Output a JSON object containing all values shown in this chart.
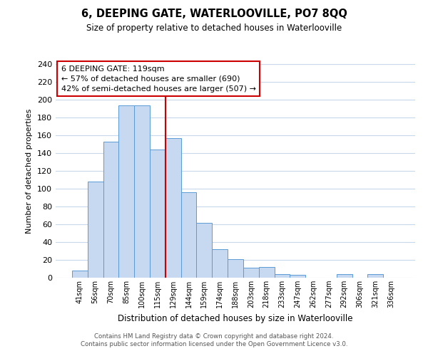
{
  "title": "6, DEEPING GATE, WATERLOOVILLE, PO7 8QQ",
  "subtitle": "Size of property relative to detached houses in Waterlooville",
  "xlabel": "Distribution of detached houses by size in Waterlooville",
  "ylabel": "Number of detached properties",
  "bar_labels": [
    "41sqm",
    "56sqm",
    "70sqm",
    "85sqm",
    "100sqm",
    "115sqm",
    "129sqm",
    "144sqm",
    "159sqm",
    "174sqm",
    "188sqm",
    "203sqm",
    "218sqm",
    "233sqm",
    "247sqm",
    "262sqm",
    "277sqm",
    "292sqm",
    "306sqm",
    "321sqm",
    "336sqm"
  ],
  "bar_values": [
    8,
    108,
    153,
    194,
    194,
    144,
    157,
    96,
    62,
    32,
    21,
    11,
    12,
    4,
    3,
    0,
    0,
    4,
    0,
    4,
    0
  ],
  "bar_color": "#c6d9f1",
  "bar_edge_color": "#5b9bd5",
  "vline_x": 5.5,
  "vline_color": "#cc0000",
  "ylim": [
    0,
    240
  ],
  "yticks": [
    0,
    20,
    40,
    60,
    80,
    100,
    120,
    140,
    160,
    180,
    200,
    220,
    240
  ],
  "annotation_title": "6 DEEPING GATE: 119sqm",
  "annotation_line1": "← 57% of detached houses are smaller (690)",
  "annotation_line2": "42% of semi-detached houses are larger (507) →",
  "annotation_box_color": "#ffffff",
  "annotation_box_edge": "#cc0000",
  "footer_line1": "Contains HM Land Registry data © Crown copyright and database right 2024.",
  "footer_line2": "Contains public sector information licensed under the Open Government Licence v3.0.",
  "background_color": "#ffffff",
  "grid_color": "#c8d8ea"
}
